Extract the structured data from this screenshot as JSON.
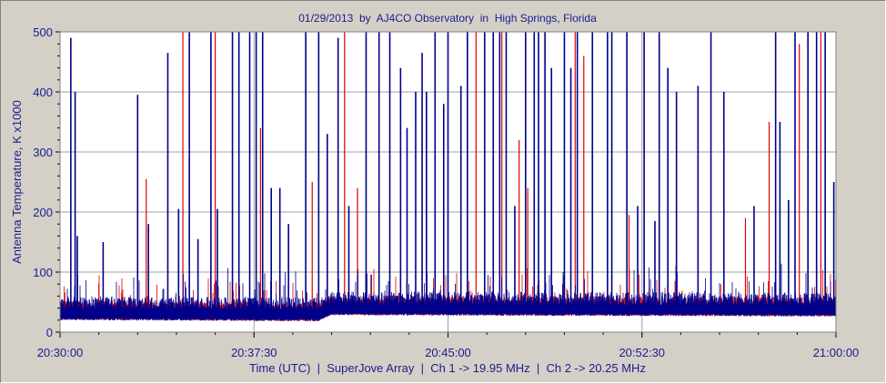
{
  "chart_data": {
    "type": "line",
    "title": "01/29/2013  by  AJ4CO Observatory  in  High Springs, Florida",
    "xlabel": "Time (UTC)  |  SuperJove Array  |  Ch 1 -> 19.95 MHz  |  Ch 2 -> 20.25 MHz",
    "ylabel": "Antenna Temperature, K x1000",
    "xlim": [
      "20:30:00",
      "21:00:00"
    ],
    "ylim": [
      0,
      500
    ],
    "x_ticks": [
      "20:30:00",
      "20:37:30",
      "20:45:00",
      "20:52:30",
      "21:00:00"
    ],
    "y_ticks": [
      0,
      100,
      200,
      300,
      400,
      500
    ],
    "grid": true,
    "baseline": {
      "x": [
        "20:30:00",
        "20:40:00",
        "20:40:30",
        "20:50:00",
        "21:00:00"
      ],
      "values": [
        30,
        28,
        38,
        37,
        36
      ]
    },
    "series": [
      {
        "color": "#00008b",
        "spikes_x": [
          "20:30:25",
          "20:30:35",
          "20:30:40",
          "20:31:40",
          "20:33:00",
          "20:33:25",
          "20:34:10",
          "20:34:35",
          "20:35:00",
          "20:35:20",
          "20:35:50",
          "20:36:05",
          "20:36:40",
          "20:36:55",
          "20:37:20",
          "20:37:35",
          "20:37:50",
          "20:38:10",
          "20:38:30",
          "20:38:50",
          "20:39:30",
          "20:40:00",
          "20:40:20",
          "20:40:45",
          "20:41:10",
          "20:41:50",
          "20:42:20",
          "20:42:45",
          "20:43:10",
          "20:43:25",
          "20:43:45",
          "20:44:00",
          "20:44:30",
          "20:45:00",
          "20:45:30",
          "20:45:45",
          "20:46:25",
          "20:47:00",
          "20:47:15",
          "20:47:35",
          "20:48:00",
          "20:48:30",
          "20:49:00",
          "20:49:30",
          "20:49:45",
          "20:50:00",
          "20:50:35",
          "20:51:10",
          "20:51:20",
          "20:51:55",
          "20:52:20",
          "20:52:35",
          "20:53:10",
          "20:53:30",
          "20:53:50",
          "20:54:40",
          "20:55:10",
          "20:56:50",
          "20:57:40",
          "20:58:25",
          "20:58:55",
          "20:59:15",
          "20:59:35",
          "20:59:55"
        ],
        "spikes_y": [
          490,
          400,
          160,
          150,
          395,
          180,
          465,
          205,
          500,
          155,
          500,
          205,
          500,
          500,
          500,
          500,
          500,
          240,
          240,
          180,
          500,
          500,
          330,
          490,
          210,
          500,
          500,
          500,
          440,
          340,
          400,
          465,
          500,
          500,
          410,
          500,
          500,
          500,
          500,
          210,
          500,
          500,
          440,
          500,
          440,
          500,
          500,
          500,
          500,
          500,
          210,
          500,
          500,
          440,
          400,
          410,
          500,
          210,
          500,
          500,
          500,
          500,
          500,
          250
        ],
        "spikes_x_2": [
          "20:44:10",
          "20:44:50",
          "20:46:45",
          "20:48:20",
          "20:48:45",
          "20:53:00",
          "20:55:40",
          "20:57:50",
          "20:58:10"
        ],
        "spikes_y_2": [
          400,
          380,
          500,
          500,
          500,
          185,
          400,
          350,
          220
        ]
      },
      {
        "color": "#e00000",
        "spikes_x": [
          "20:33:20",
          "20:34:45",
          "20:36:00",
          "20:37:45",
          "20:39:45",
          "20:41:00",
          "20:41:30",
          "20:46:05",
          "20:47:05",
          "20:47:45",
          "20:48:05",
          "20:49:55",
          "20:50:15",
          "20:52:00",
          "20:56:30",
          "20:57:25",
          "20:58:35",
          "20:59:25"
        ],
        "spikes_y": [
          255,
          500,
          500,
          340,
          250,
          500,
          240,
          500,
          500,
          320,
          240,
          500,
          460,
          195,
          190,
          350,
          480,
          500
        ]
      }
    ]
  }
}
